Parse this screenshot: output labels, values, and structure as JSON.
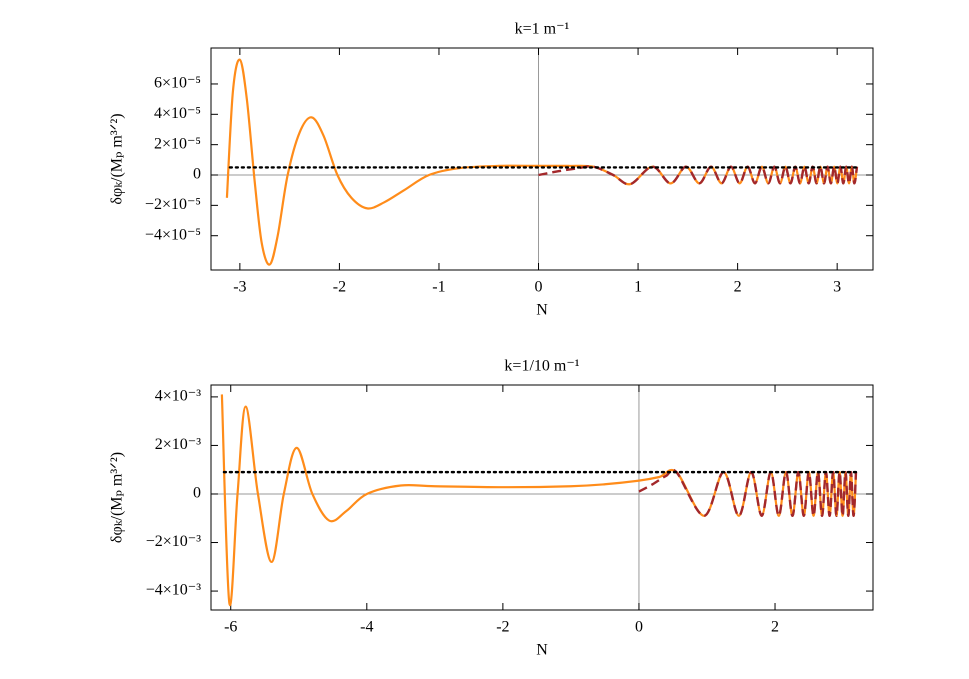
{
  "chart_data": [
    {
      "type": "line",
      "title": "k=1 m⁻¹",
      "xlabel": "N",
      "ylabel": "δφₖ/(Mₚ m³ᐟ²)",
      "xlim": [
        -3.29,
        3.36
      ],
      "ylim": [
        -6.26e-05,
        8.37e-05
      ],
      "xticks": [
        -3,
        -2,
        -1,
        0,
        1,
        2,
        3
      ],
      "yticks": [
        {
          "value": -4e-05,
          "label": "−4×10⁻⁵"
        },
        {
          "value": -2e-05,
          "label": "−2×10⁻⁵"
        },
        0,
        {
          "value": 2e-05,
          "label": "2×10⁻⁵"
        },
        {
          "value": 4e-05,
          "label": "4×10⁻⁵"
        },
        {
          "value": 6e-05,
          "label": "6×10⁻⁵"
        }
      ],
      "series": [
        {
          "color": "#ff8c1a",
          "dash": "solid",
          "x": [
            -3.13,
            -3.07,
            -3.0,
            -2.93,
            -2.85,
            -2.78,
            -2.7,
            -2.62,
            -2.52,
            -2.4,
            -2.28,
            -2.16,
            -2.02,
            -1.88,
            -1.72,
            -1.55,
            -1.35,
            -1.1,
            -0.8,
            -0.4,
            0,
            0.3,
            0.55,
            0.75,
            0.922,
            1.145,
            1.327,
            1.481,
            1.615,
            1.733,
            1.838,
            1.933,
            2.02,
            2.1,
            2.174,
            2.243,
            2.308,
            2.369,
            2.426,
            2.48,
            2.531,
            2.58,
            2.627,
            2.671,
            2.714,
            2.754,
            2.793,
            2.831,
            2.868,
            2.903,
            2.937,
            2.97,
            3.002,
            3.032,
            3.062,
            3.091,
            3.119,
            3.147,
            3.173,
            3.199
          ],
          "values": [
            -1.5e-05,
            5.5e-05,
            7.6e-05,
            5e-05,
            -5e-06,
            -4.5e-05,
            -5.9e-05,
            -4e-05,
            0,
            2.8e-05,
            3.8e-05,
            2.6e-05,
            0,
            -1.5e-05,
            -2.2e-05,
            -1.8e-05,
            -1e-05,
            0,
            4.5e-06,
            6e-06,
            6e-06,
            6e-06,
            5.5e-06,
            0,
            -6e-06,
            5.5e-06,
            -5.5e-06,
            5.5e-06,
            -5.5e-06,
            5.5e-06,
            -5.5e-06,
            5.5e-06,
            -5.5e-06,
            5.5e-06,
            -5.5e-06,
            5.5e-06,
            -5.5e-06,
            5.5e-06,
            -5.5e-06,
            5.5e-06,
            -5.5e-06,
            5.5e-06,
            -5.5e-06,
            5.5e-06,
            -5.5e-06,
            5.5e-06,
            -5.5e-06,
            5.5e-06,
            -5.5e-06,
            5.5e-06,
            -5.5e-06,
            5.5e-06,
            -5.5e-06,
            5.5e-06,
            -5.5e-06,
            5.5e-06,
            -5.5e-06,
            5.5e-06,
            -5.5e-06,
            5.5e-06
          ]
        },
        {
          "color": "#a3282b",
          "dash": "dashed",
          "x": [
            0,
            0.2,
            0.4,
            0.55,
            0.75,
            0.922,
            1.145,
            1.327,
            1.481,
            1.615,
            1.733,
            1.838,
            1.933,
            2.02,
            2.1,
            2.174,
            2.243,
            2.308,
            2.369,
            2.426,
            2.48,
            2.531,
            2.58,
            2.627,
            2.671,
            2.714,
            2.754,
            2.793,
            2.831,
            2.868,
            2.903,
            2.937,
            2.97,
            3.002,
            3.032,
            3.062,
            3.091,
            3.119,
            3.147,
            3.173,
            3.199
          ],
          "values": [
            0,
            2.5e-06,
            4.5e-06,
            5.5e-06,
            0,
            -6e-06,
            5.5e-06,
            -5.5e-06,
            5.5e-06,
            -5.5e-06,
            5.5e-06,
            -5.5e-06,
            5.5e-06,
            -5.5e-06,
            5.5e-06,
            -5.5e-06,
            5.5e-06,
            -5.5e-06,
            5.5e-06,
            -5.5e-06,
            5.5e-06,
            -5.5e-06,
            5.5e-06,
            -5.5e-06,
            5.5e-06,
            -5.5e-06,
            5.5e-06,
            -5.5e-06,
            5.5e-06,
            -5.5e-06,
            5.5e-06,
            -5.5e-06,
            5.5e-06,
            -5.5e-06,
            5.5e-06,
            -5.5e-06,
            5.5e-06,
            -5.5e-06,
            5.5e-06,
            -5.5e-06,
            5.5e-06
          ]
        },
        {
          "color": "#000000",
          "dash": "dotted",
          "x": [
            -3.1,
            3.2
          ],
          "values": [
            5e-06,
            5e-06
          ]
        }
      ]
    },
    {
      "type": "line",
      "title": "k=1/10 m⁻¹",
      "xlabel": "N",
      "ylabel": "δφₖ/(Mₚ m³ᐟ²)",
      "xlim": [
        -6.29,
        3.44
      ],
      "ylim": [
        -0.00478,
        0.00449
      ],
      "xticks": [
        -6,
        -4,
        -2,
        0,
        2
      ],
      "yticks": [
        {
          "value": -0.004,
          "label": "−4×10⁻³"
        },
        {
          "value": -0.002,
          "label": "−2×10⁻³"
        },
        0,
        {
          "value": 0.002,
          "label": "2×10⁻³"
        },
        {
          "value": 0.004,
          "label": "4×10⁻³"
        }
      ],
      "series": [
        {
          "color": "#ff8c1a",
          "dash": "solid",
          "x": [
            -6.13,
            -6.02,
            -5.9,
            -5.78,
            -5.6,
            -5.4,
            -5.22,
            -5.03,
            -4.8,
            -4.55,
            -4.3,
            -4.0,
            -3.5,
            -3,
            -2,
            -1,
            -0.5,
            0,
            0.3,
            0.551,
            0.957,
            1.244,
            1.468,
            1.65,
            1.804,
            1.938,
            2.055,
            2.161,
            2.256,
            2.343,
            2.423,
            2.497,
            2.566,
            2.631,
            2.691,
            2.748,
            2.802,
            2.854,
            2.903,
            2.949,
            2.993,
            3.036,
            3.077,
            3.116,
            3.154,
            3.19
          ],
          "values": [
            0.0041,
            -0.0045,
            0,
            0.0036,
            0,
            -0.0028,
            0,
            0.0019,
            0,
            -0.0011,
            -0.0007,
            0,
            0.00035,
            0.00032,
            0.00028,
            0.00032,
            0.0004,
            0.00055,
            0.0007,
            0.0009,
            -0.0009,
            0.0009,
            -0.0009,
            0.0009,
            -0.0009,
            0.0009,
            -0.0009,
            0.0009,
            -0.0009,
            0.0009,
            -0.0009,
            0.0009,
            -0.0009,
            0.0009,
            -0.0009,
            0.0009,
            -0.0009,
            0.0009,
            -0.0009,
            0.0009,
            -0.0009,
            0.0009,
            -0.0009,
            0.0009,
            -0.0009,
            0.0009
          ]
        },
        {
          "color": "#a3282b",
          "dash": "dashed",
          "x": [
            0,
            0.2,
            0.4,
            0.551,
            0.957,
            1.244,
            1.468,
            1.65,
            1.804,
            1.938,
            2.055,
            2.161,
            2.256,
            2.343,
            2.423,
            2.497,
            2.566,
            2.631,
            2.691,
            2.748,
            2.802,
            2.854,
            2.903,
            2.949,
            2.993,
            3.036,
            3.077,
            3.116,
            3.154,
            3.19
          ],
          "values": [
            0.0001,
            0.0004,
            0.00075,
            0.0009,
            -0.0009,
            0.0009,
            -0.0009,
            0.0009,
            -0.0009,
            0.0009,
            -0.0009,
            0.0009,
            -0.0009,
            0.0009,
            -0.0009,
            0.0009,
            -0.0009,
            0.0009,
            -0.0009,
            0.0009,
            -0.0009,
            0.0009,
            -0.0009,
            0.0009,
            -0.0009,
            0.0009,
            -0.0009,
            0.0009,
            -0.0009,
            0.0009
          ]
        },
        {
          "color": "#000000",
          "dash": "dotted",
          "x": [
            -6.1,
            3.2
          ],
          "values": [
            0.0009,
            0.0009
          ]
        }
      ]
    }
  ]
}
